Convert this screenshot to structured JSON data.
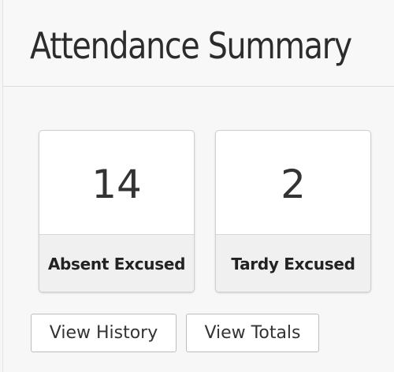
{
  "header": {
    "title": "Attendance Summary"
  },
  "tiles": [
    {
      "count": "14",
      "label": "Absent Excused"
    },
    {
      "count": "2",
      "label": "Tardy Excused"
    }
  ],
  "actions": {
    "view_history_label": "View History",
    "view_totals_label": "View Totals"
  }
}
